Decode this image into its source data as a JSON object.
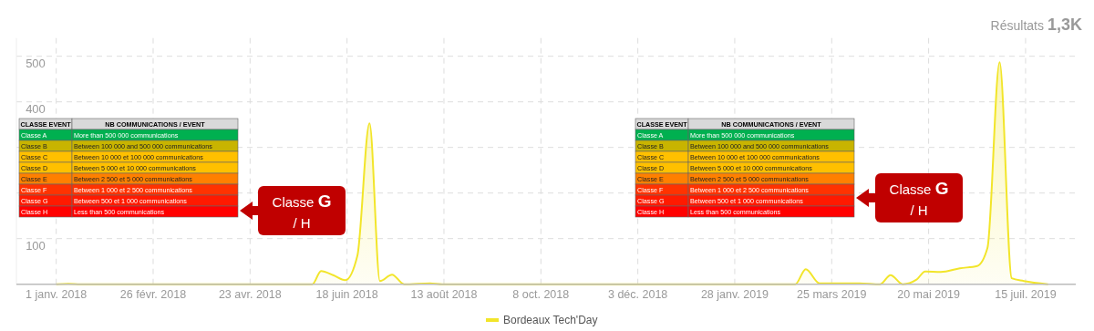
{
  "chart_data": {
    "type": "area",
    "x": [
      "2018-01-01",
      "2018-01-08",
      "2018-01-15",
      "2018-05-29",
      "2018-06-03",
      "2018-06-10",
      "2018-06-17",
      "2018-06-24",
      "2018-07-01",
      "2018-07-07",
      "2018-07-14",
      "2018-07-21",
      "2018-08-05",
      "2018-08-12",
      "2019-03-04",
      "2019-03-10",
      "2019-03-18",
      "2019-04-10",
      "2019-04-22",
      "2019-04-28",
      "2019-05-05",
      "2019-05-13",
      "2019-05-18",
      "2019-05-27",
      "2019-06-07",
      "2019-06-17",
      "2019-06-23",
      "2019-06-30",
      "2019-07-07",
      "2019-07-14",
      "2019-07-28"
    ],
    "series": [
      {
        "name": "Bordeaux Tech'Day",
        "color": "#f2e52a",
        "values": [
          0,
          1,
          0,
          0,
          29,
          20,
          9,
          63,
          353,
          7,
          21,
          0,
          2,
          0,
          0,
          33,
          2,
          2,
          0,
          20,
          0,
          10,
          28,
          27,
          35,
          40,
          80,
          487,
          13,
          7,
          0
        ]
      }
    ],
    "xlim": [
      "2017-12-09",
      "2019-08-13"
    ],
    "xticks": [
      {
        "value": "2018-01-01",
        "label": "1 janv. 2018"
      },
      {
        "value": "2018-02-26",
        "label": "26 févr. 2018"
      },
      {
        "value": "2018-04-23",
        "label": "23 avr. 2018"
      },
      {
        "value": "2018-06-18",
        "label": "18 juin 2018"
      },
      {
        "value": "2018-08-13",
        "label": "13 août 2018"
      },
      {
        "value": "2018-10-08",
        "label": "8 oct. 2018"
      },
      {
        "value": "2018-12-03",
        "label": "3 déc. 2018"
      },
      {
        "value": "2019-01-28",
        "label": "28 janv. 2019"
      },
      {
        "value": "2019-03-25",
        "label": "25 mars 2019"
      },
      {
        "value": "2019-05-20",
        "label": "20 mai 2019"
      },
      {
        "value": "2019-07-15",
        "label": "15 juil. 2019"
      }
    ],
    "ylim": [
      0,
      540
    ],
    "yticks": [
      100,
      {
        "value": 200,
        "label": null
      },
      {
        "value": 300,
        "label": null
      },
      400,
      500
    ],
    "grid": true,
    "legend": "bottom",
    "annotations": [
      "CLASSE EVENT",
      "NB COMMUNICATIONS / EVENT",
      "Classe A",
      "More than 500 000 communications",
      "Classe B",
      "Between 100 000 and 500 000 communications",
      "Classe C",
      "Between 10 000 et 100 000 communications",
      "Classe D",
      "Between 5 000 et 10 000 communications",
      "Classe E",
      "Between 2 500 et 5 000 communications",
      "Classe F",
      "Between 1 000 et 2 500 communications",
      "Classe G",
      "Between 500 et 1 000 communications",
      "Classe H",
      "Less than 500 communications",
      "Classe G",
      "/ H",
      "CLASSE EVENT",
      "NB COMMUNICATIONS / EVENT",
      "Classe A",
      "More than 500 000 communications",
      "Classe B",
      "Between 100 000 and 500 000 communications",
      "Classe C",
      "Between 10 000 et 100 000 communications",
      "Classe D",
      "Between 5 000 et 10 000 communications",
      "Classe E",
      "Between 2 500 et 5 000 communications",
      "Classe F",
      "Between 1 000 et 2 500 communications",
      "Classe G",
      "Between 500 et 1 000 communications",
      "Classe H",
      "Less than 500 communications",
      "Classe G",
      "/ H",
      "Résultats",
      "1,3K"
    ]
  }
}
